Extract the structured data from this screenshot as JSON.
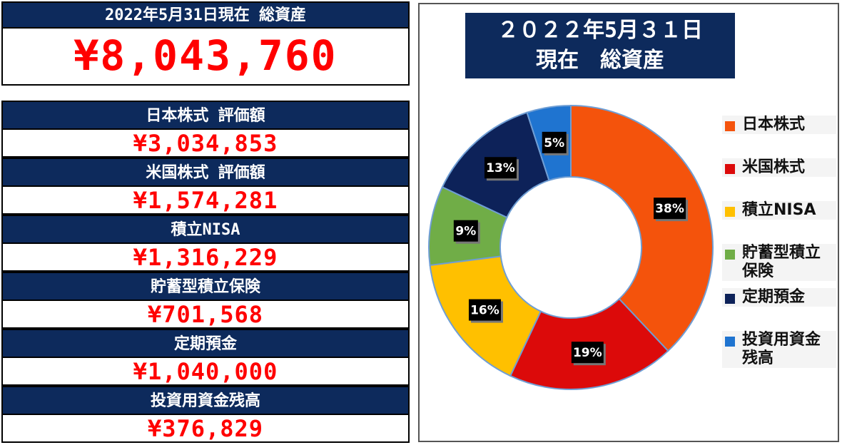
{
  "total": {
    "heading": "2022年5月31日現在 総資産",
    "amount": "¥8,043,760"
  },
  "items": [
    {
      "label": "日本株式 評価額",
      "value": "¥3,034,853"
    },
    {
      "label": "米国株式 評価額",
      "value": "¥1,574,281"
    },
    {
      "label": "積立NISA",
      "value": "¥1,316,229"
    },
    {
      "label": "貯蓄型積立保険",
      "value": "¥701,568"
    },
    {
      "label": "定期預金",
      "value": "¥1,040,000"
    },
    {
      "label": "投資用資金残高",
      "value": "¥376,829"
    }
  ],
  "chart_data": {
    "type": "pie",
    "title_line1": "２０２２年5月３１日",
    "title_line2": "現在　総資産",
    "categories": [
      "日本株式",
      "米国株式",
      "積立NISA",
      "貯蓄型積立保険",
      "定期預金",
      "投資用資金残高"
    ],
    "legend_labels": [
      [
        "日本株式"
      ],
      [
        "米国株式"
      ],
      [
        "積立NISA"
      ],
      [
        "貯蓄型積立",
        "保険"
      ],
      [
        "定期預金"
      ],
      [
        "投資用資金",
        "残高"
      ]
    ],
    "values": [
      38,
      19,
      16,
      9,
      13,
      5
    ],
    "data_labels": [
      "38%",
      "19%",
      "16%",
      "9%",
      "13%",
      "5%"
    ],
    "colors": [
      "#f4530c",
      "#dc0a0a",
      "#ffc000",
      "#70ad47",
      "#0d2259",
      "#1f74d0"
    ],
    "legend_position": "right"
  }
}
